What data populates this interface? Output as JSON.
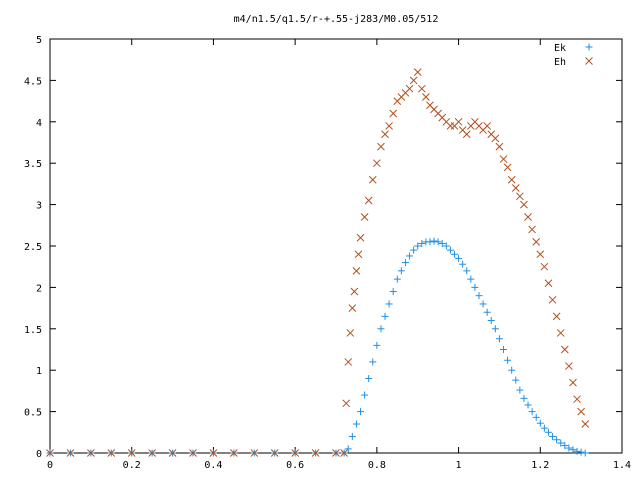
{
  "chart_data": {
    "type": "scatter",
    "title": "m4/n1.5/q1.5/r-+.55-j283/M0.05/512",
    "xlabel": "",
    "ylabel": "",
    "xlim": [
      0,
      1.4
    ],
    "ylim": [
      0,
      5
    ],
    "x_ticks": [
      "0",
      "0.2",
      "0.4",
      "0.6",
      "0.8",
      "1",
      "1.2",
      "1.4"
    ],
    "y_ticks": [
      "0",
      "0.5",
      "1",
      "1.5",
      "2",
      "2.5",
      "3",
      "3.5",
      "4",
      "4.5",
      "5"
    ],
    "x_tick_values": [
      0,
      0.2,
      0.4,
      0.6,
      0.8,
      1.0,
      1.2,
      1.4
    ],
    "y_tick_values": [
      0,
      0.5,
      1,
      1.5,
      2,
      2.5,
      3,
      3.5,
      4,
      4.5,
      5
    ],
    "grid": false,
    "legend_position": "top-right",
    "series": [
      {
        "name": "Ek",
        "marker": "plus",
        "color": "#1f8fe6",
        "x": [
          0.0,
          0.05,
          0.1,
          0.15,
          0.2,
          0.25,
          0.3,
          0.35,
          0.4,
          0.45,
          0.5,
          0.55,
          0.6,
          0.65,
          0.7,
          0.72,
          0.73,
          0.74,
          0.75,
          0.76,
          0.77,
          0.78,
          0.79,
          0.8,
          0.81,
          0.82,
          0.83,
          0.84,
          0.85,
          0.86,
          0.87,
          0.88,
          0.89,
          0.9,
          0.91,
          0.92,
          0.93,
          0.94,
          0.95,
          0.96,
          0.97,
          0.98,
          0.99,
          1.0,
          1.01,
          1.02,
          1.03,
          1.04,
          1.05,
          1.06,
          1.07,
          1.08,
          1.09,
          1.1,
          1.11,
          1.12,
          1.13,
          1.14,
          1.15,
          1.16,
          1.17,
          1.18,
          1.19,
          1.2,
          1.21,
          1.22,
          1.23,
          1.24,
          1.25,
          1.26,
          1.27,
          1.28,
          1.29,
          1.3,
          1.31
        ],
        "y": [
          0,
          0,
          0,
          0,
          0,
          0,
          0,
          0,
          0,
          0,
          0,
          0,
          0,
          0,
          0,
          0,
          0.05,
          0.2,
          0.35,
          0.5,
          0.7,
          0.9,
          1.1,
          1.3,
          1.5,
          1.65,
          1.8,
          1.95,
          2.1,
          2.2,
          2.3,
          2.38,
          2.45,
          2.5,
          2.53,
          2.55,
          2.55,
          2.56,
          2.55,
          2.53,
          2.5,
          2.45,
          2.4,
          2.35,
          2.28,
          2.2,
          2.1,
          2.0,
          1.9,
          1.8,
          1.7,
          1.6,
          1.5,
          1.38,
          1.25,
          1.12,
          1.0,
          0.88,
          0.76,
          0.66,
          0.58,
          0.5,
          0.43,
          0.36,
          0.3,
          0.25,
          0.2,
          0.16,
          0.12,
          0.09,
          0.06,
          0.04,
          0.02,
          0.01,
          0.0
        ]
      },
      {
        "name": "Eh",
        "marker": "cross",
        "color": "#b4501e",
        "x": [
          0.0,
          0.05,
          0.1,
          0.15,
          0.2,
          0.25,
          0.3,
          0.35,
          0.4,
          0.45,
          0.5,
          0.55,
          0.6,
          0.65,
          0.7,
          0.72,
          0.725,
          0.73,
          0.735,
          0.74,
          0.745,
          0.75,
          0.755,
          0.76,
          0.77,
          0.78,
          0.79,
          0.8,
          0.81,
          0.82,
          0.83,
          0.84,
          0.85,
          0.86,
          0.87,
          0.88,
          0.89,
          0.9,
          0.91,
          0.92,
          0.93,
          0.94,
          0.95,
          0.96,
          0.97,
          0.98,
          0.99,
          1.0,
          1.01,
          1.02,
          1.03,
          1.04,
          1.05,
          1.06,
          1.07,
          1.08,
          1.09,
          1.1,
          1.11,
          1.12,
          1.13,
          1.14,
          1.15,
          1.16,
          1.17,
          1.18,
          1.19,
          1.2,
          1.21,
          1.22,
          1.23,
          1.24,
          1.25,
          1.26,
          1.27,
          1.28,
          1.29,
          1.3,
          1.31
        ],
        "y": [
          0,
          0,
          0,
          0,
          0,
          0,
          0,
          0,
          0,
          0,
          0,
          0,
          0,
          0,
          0,
          0,
          0.6,
          1.1,
          1.45,
          1.75,
          1.95,
          2.2,
          2.4,
          2.6,
          2.85,
          3.05,
          3.3,
          3.5,
          3.7,
          3.85,
          3.95,
          4.1,
          4.25,
          4.3,
          4.35,
          4.4,
          4.5,
          4.6,
          4.4,
          4.3,
          4.2,
          4.15,
          4.1,
          4.05,
          4.0,
          3.95,
          3.95,
          4.0,
          3.9,
          3.85,
          3.95,
          4.0,
          3.95,
          3.9,
          3.95,
          3.85,
          3.8,
          3.7,
          3.55,
          3.45,
          3.3,
          3.2,
          3.1,
          3.0,
          2.85,
          2.7,
          2.55,
          2.4,
          2.25,
          2.05,
          1.85,
          1.65,
          1.45,
          1.25,
          1.05,
          0.85,
          0.65,
          0.5,
          0.35
        ]
      }
    ]
  }
}
